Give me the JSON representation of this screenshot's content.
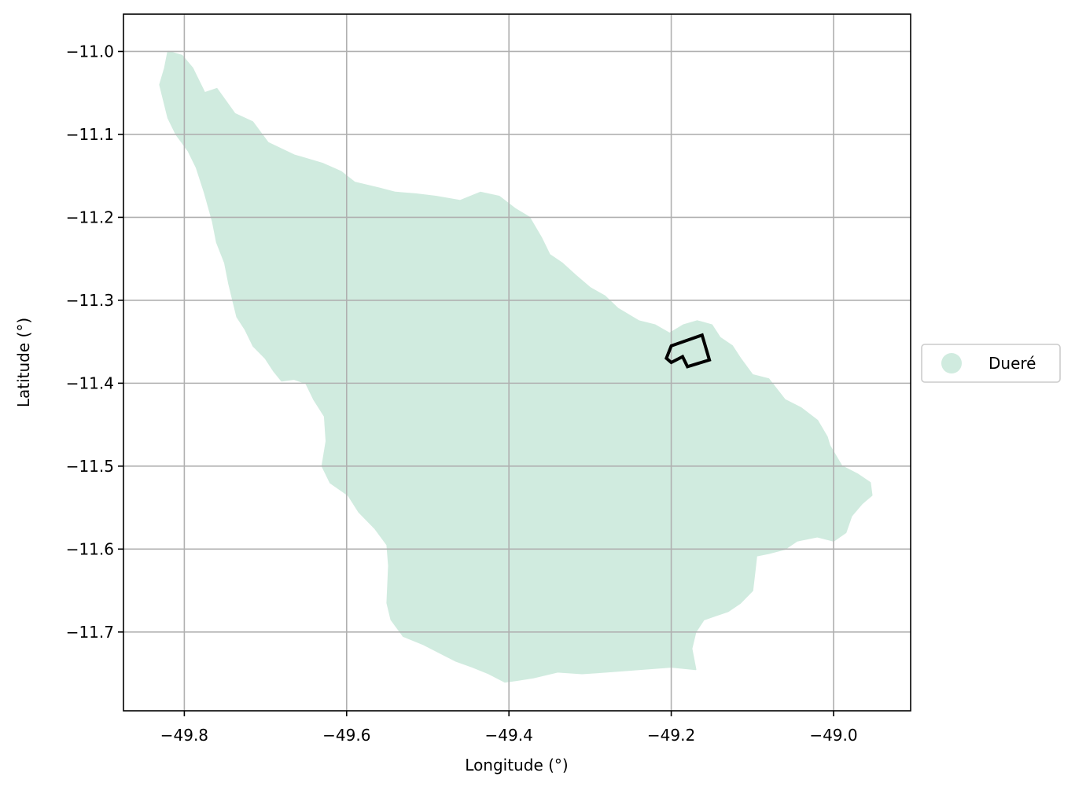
{
  "chart_data": {
    "type": "map",
    "xlabel": "Longitude (°)",
    "ylabel": "Latitude (°)",
    "xlim": [
      -49.875,
      -48.905
    ],
    "ylim": [
      -11.795,
      -10.955
    ],
    "grid": true,
    "xticks": [
      {
        "value": -49.8,
        "label": "−49.8"
      },
      {
        "value": -49.6,
        "label": "−49.6"
      },
      {
        "value": -49.4,
        "label": "−49.4"
      },
      {
        "value": -49.2,
        "label": "−49.2"
      },
      {
        "value": -49.0,
        "label": "−49.0"
      }
    ],
    "yticks": [
      {
        "value": -11.0,
        "label": "−11.0"
      },
      {
        "value": -11.1,
        "label": "−11.1"
      },
      {
        "value": -11.2,
        "label": "−11.2"
      },
      {
        "value": -11.3,
        "label": "−11.3"
      },
      {
        "value": -11.4,
        "label": "−11.4"
      },
      {
        "value": -11.5,
        "label": "−11.5"
      },
      {
        "value": -11.6,
        "label": "−11.6"
      },
      {
        "value": -11.7,
        "label": "−11.7"
      }
    ],
    "legend": {
      "placement": "right",
      "entries": [
        {
          "label": "Dueré",
          "color": "#d0ebdf"
        }
      ]
    },
    "region": {
      "name": "Dueré",
      "fill": "#d0ebdf",
      "boundary": [
        [
          -49.82,
          -11.0
        ],
        [
          -49.803,
          -11.005
        ],
        [
          -49.79,
          -11.02
        ],
        [
          -49.775,
          -11.05
        ],
        [
          -49.76,
          -11.045
        ],
        [
          -49.738,
          -11.075
        ],
        [
          -49.716,
          -11.085
        ],
        [
          -49.697,
          -11.11
        ],
        [
          -49.665,
          -11.125
        ],
        [
          -49.63,
          -11.135
        ],
        [
          -49.607,
          -11.145
        ],
        [
          -49.59,
          -11.158
        ],
        [
          -49.56,
          -11.165
        ],
        [
          -49.54,
          -11.17
        ],
        [
          -49.515,
          -11.172
        ],
        [
          -49.49,
          -11.175
        ],
        [
          -49.46,
          -11.18
        ],
        [
          -49.435,
          -11.17
        ],
        [
          -49.412,
          -11.175
        ],
        [
          -49.392,
          -11.19
        ],
        [
          -49.375,
          -11.2
        ],
        [
          -49.36,
          -11.225
        ],
        [
          -49.35,
          -11.245
        ],
        [
          -49.335,
          -11.255
        ],
        [
          -49.318,
          -11.27
        ],
        [
          -49.3,
          -11.285
        ],
        [
          -49.282,
          -11.295
        ],
        [
          -49.266,
          -11.31
        ],
        [
          -49.24,
          -11.325
        ],
        [
          -49.22,
          -11.33
        ],
        [
          -49.202,
          -11.34
        ],
        [
          -49.185,
          -11.33
        ],
        [
          -49.168,
          -11.325
        ],
        [
          -49.15,
          -11.33
        ],
        [
          -49.14,
          -11.345
        ],
        [
          -49.125,
          -11.355
        ],
        [
          -49.115,
          -11.37
        ],
        [
          -49.1,
          -11.39
        ],
        [
          -49.08,
          -11.395
        ],
        [
          -49.06,
          -11.42
        ],
        [
          -49.04,
          -11.43
        ],
        [
          -49.02,
          -11.445
        ],
        [
          -49.008,
          -11.465
        ],
        [
          -49.005,
          -11.475
        ],
        [
          -48.99,
          -11.5
        ],
        [
          -48.97,
          -11.51
        ],
        [
          -48.955,
          -11.52
        ],
        [
          -48.953,
          -11.535
        ],
        [
          -48.965,
          -11.545
        ],
        [
          -48.978,
          -11.56
        ],
        [
          -48.985,
          -11.58
        ],
        [
          -49.0,
          -11.59
        ],
        [
          -49.02,
          -11.585
        ],
        [
          -49.045,
          -11.59
        ],
        [
          -49.06,
          -11.6
        ],
        [
          -49.08,
          -11.605
        ],
        [
          -49.095,
          -11.608
        ],
        [
          -49.097,
          -11.625
        ],
        [
          -49.1,
          -11.65
        ],
        [
          -49.115,
          -11.665
        ],
        [
          -49.13,
          -11.675
        ],
        [
          -49.145,
          -11.68
        ],
        [
          -49.16,
          -11.685
        ],
        [
          -49.17,
          -11.7
        ],
        [
          -49.175,
          -11.72
        ],
        [
          -49.17,
          -11.745
        ],
        [
          -49.2,
          -11.742
        ],
        [
          -49.24,
          -11.745
        ],
        [
          -49.28,
          -11.748
        ],
        [
          -49.31,
          -11.75
        ],
        [
          -49.34,
          -11.748
        ],
        [
          -49.37,
          -11.755
        ],
        [
          -49.39,
          -11.758
        ],
        [
          -49.405,
          -11.76
        ],
        [
          -49.425,
          -11.75
        ],
        [
          -49.445,
          -11.742
        ],
        [
          -49.465,
          -11.735
        ],
        [
          -49.485,
          -11.725
        ],
        [
          -49.505,
          -11.715
        ],
        [
          -49.53,
          -11.705
        ],
        [
          -49.545,
          -11.685
        ],
        [
          -49.55,
          -11.665
        ],
        [
          -49.548,
          -11.62
        ],
        [
          -49.55,
          -11.595
        ],
        [
          -49.565,
          -11.575
        ],
        [
          -49.585,
          -11.555
        ],
        [
          -49.598,
          -11.535
        ],
        [
          -49.62,
          -11.52
        ],
        [
          -49.63,
          -11.5
        ],
        [
          -49.625,
          -11.47
        ],
        [
          -49.627,
          -11.44
        ],
        [
          -49.64,
          -11.42
        ],
        [
          -49.65,
          -11.4
        ],
        [
          -49.665,
          -11.395
        ],
        [
          -49.68,
          -11.397
        ],
        [
          -49.69,
          -11.385
        ],
        [
          -49.7,
          -11.37
        ],
        [
          -49.715,
          -11.355
        ],
        [
          -49.725,
          -11.335
        ],
        [
          -49.735,
          -11.32
        ],
        [
          -49.74,
          -11.3
        ],
        [
          -49.745,
          -11.28
        ],
        [
          -49.75,
          -11.255
        ],
        [
          -49.76,
          -11.23
        ],
        [
          -49.765,
          -11.205
        ],
        [
          -49.775,
          -11.17
        ],
        [
          -49.785,
          -11.14
        ],
        [
          -49.795,
          -11.12
        ],
        [
          -49.81,
          -11.1
        ],
        [
          -49.82,
          -11.08
        ],
        [
          -49.825,
          -11.06
        ],
        [
          -49.83,
          -11.04
        ],
        [
          -49.824,
          -11.02
        ],
        [
          -49.82,
          -11.0
        ]
      ]
    },
    "outline": {
      "stroke": "#000000",
      "points": [
        [
          -49.2,
          -11.355
        ],
        [
          -49.162,
          -11.342
        ],
        [
          -49.153,
          -11.372
        ],
        [
          -49.18,
          -11.38
        ],
        [
          -49.186,
          -11.368
        ],
        [
          -49.2,
          -11.375
        ],
        [
          -49.206,
          -11.37
        ],
        [
          -49.202,
          -11.36
        ],
        [
          -49.2,
          -11.355
        ]
      ]
    }
  }
}
